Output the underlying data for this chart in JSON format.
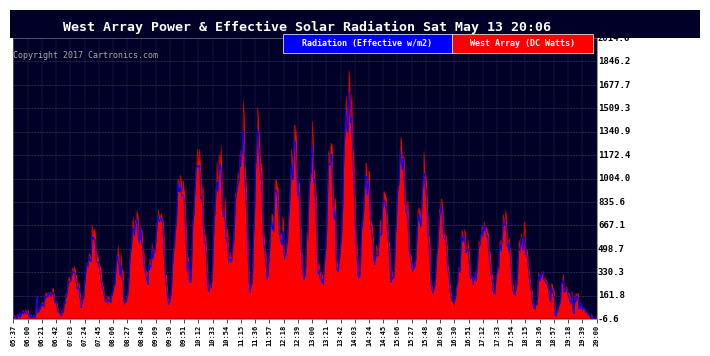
{
  "title": "West Array Power & Effective Solar Radiation Sat May 13 20:06",
  "copyright": "Copyright 2017 Cartronics.com",
  "legend_radiation": "Radiation (Effective w/m2)",
  "legend_west": "West Array (DC Watts)",
  "yticks": [
    -6.6,
    161.8,
    330.3,
    498.7,
    667.1,
    835.6,
    1004.0,
    1172.4,
    1340.9,
    1509.3,
    1677.7,
    1846.2,
    2014.6
  ],
  "ymin": -6.6,
  "ymax": 2014.6,
  "plot_bg": "#000028",
  "outer_bg": "#ffffff",
  "title_bg": "#000028",
  "title_color": "white",
  "radiation_color": "#0000ff",
  "west_color": "red",
  "grid_color": "#444466",
  "xtick_labels": [
    "05:37",
    "06:00",
    "06:21",
    "06:42",
    "07:03",
    "07:24",
    "07:45",
    "08:06",
    "08:27",
    "08:48",
    "09:09",
    "09:30",
    "09:51",
    "10:12",
    "10:33",
    "10:54",
    "11:15",
    "11:36",
    "11:57",
    "12:18",
    "12:39",
    "13:00",
    "13:21",
    "13:42",
    "14:03",
    "14:24",
    "14:45",
    "15:06",
    "15:27",
    "15:48",
    "16:09",
    "16:30",
    "16:51",
    "17:12",
    "17:33",
    "17:54",
    "18:15",
    "18:36",
    "18:57",
    "19:18",
    "19:39",
    "20:00"
  ]
}
